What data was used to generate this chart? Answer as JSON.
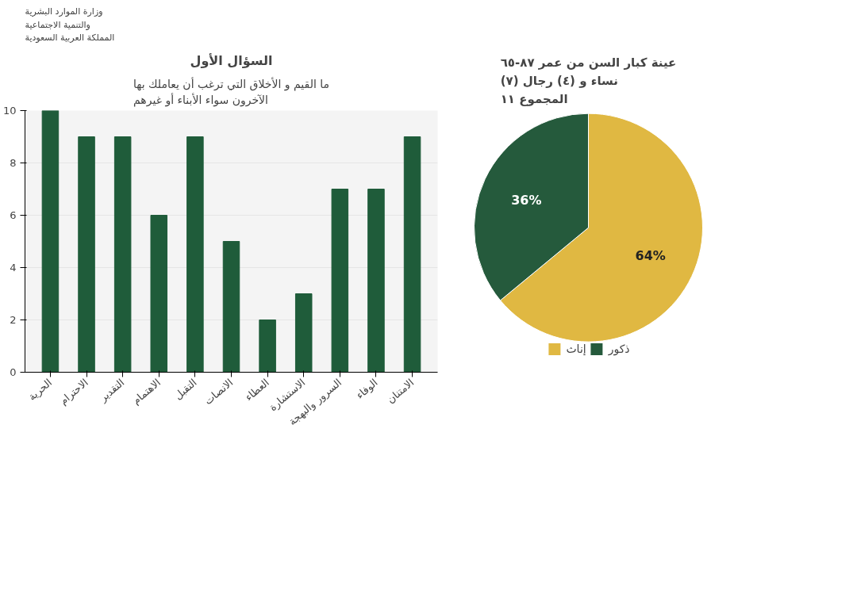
{
  "chart_data": [
    {
      "type": "bar",
      "title": "السؤال الأول",
      "subtitle": "ما القيم و الأخلاق التي ترغب أن يعاملك بها\nالآخرون سواء الأبناء أو غيرهم",
      "annotations": [
        "وزارة الموارد البشرية\nوالتنمية الاجتماعية\nالمملكة العربية السعودية"
      ],
      "categories": [
        "الحرية",
        "الاحترام",
        "التقدير",
        "الاهتمام",
        "التقبل",
        "الانصات",
        "العطاء",
        "الاستشارة",
        "السرور والبهجة",
        "الوفاء",
        "الامتنان"
      ],
      "values": [
        10,
        9,
        9,
        6,
        9,
        5,
        2,
        3,
        7,
        7,
        9
      ],
      "color": "#1f5c3a",
      "ylim": [
        0,
        10
      ],
      "yticks": [
        0,
        2,
        4,
        6,
        8,
        10
      ],
      "grid": "y"
    },
    {
      "type": "pie",
      "title": "عينة كبار السن من عمر ٨٧-٦٥\n(٧) نساء و (٤) رجال\nالمجموع ١١",
      "categories": [
        "إناث",
        "ذكور"
      ],
      "values": [
        64,
        36
      ],
      "colors": [
        "#e0b842",
        "#255a3c"
      ],
      "value_labels": [
        "64%",
        "36%"
      ],
      "legend": "bottom"
    }
  ]
}
